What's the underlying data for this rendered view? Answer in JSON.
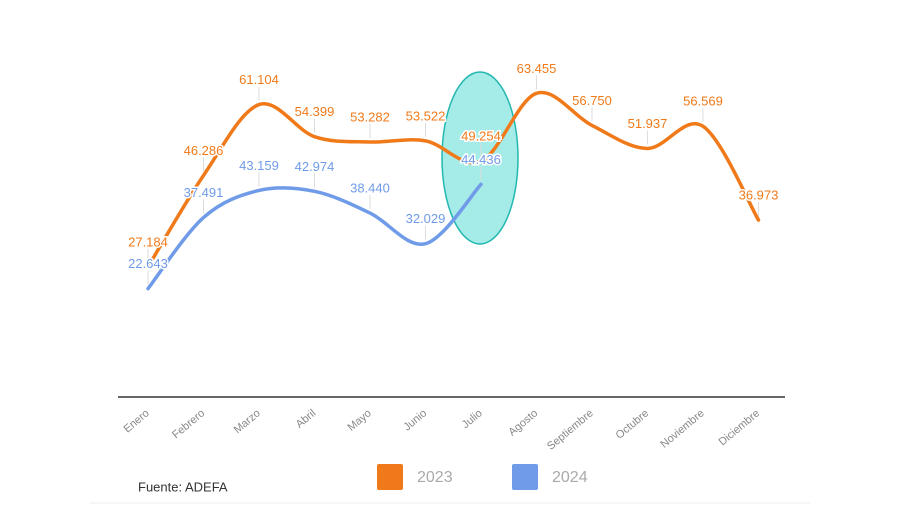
{
  "chart_data": {
    "type": "line",
    "categories": [
      "Enero",
      "Febrero",
      "Marzo",
      "Abril",
      "Mayo",
      "Junio",
      "Julio",
      "Agosto",
      "Septiembre",
      "Octubre",
      "Noviembre",
      "Diciembre"
    ],
    "series": [
      {
        "name": "2023",
        "color": "#f07a1a",
        "values": [
          27184,
          46286,
          61104,
          54399,
          53282,
          53522,
          49254,
          63455,
          56750,
          51937,
          56569,
          36973
        ],
        "value_labels": [
          "27.184",
          "46.286",
          "61.104",
          "54.399",
          "53.282",
          "53.522",
          "49.254",
          "63.455",
          "56.750",
          "51.937",
          "56.569",
          "36.973"
        ]
      },
      {
        "name": "2024",
        "color": "#6f9be8",
        "values": [
          22643,
          37491,
          43159,
          42974,
          38440,
          32029,
          44436,
          null,
          null,
          null,
          null,
          null
        ],
        "value_labels": [
          "22.643",
          "37.491",
          "43.159",
          "42.974",
          "38.440",
          "32.029",
          "44.436",
          null,
          null,
          null,
          null,
          null
        ]
      }
    ],
    "ylim": [
      0,
      70000
    ],
    "source": "Fuente: ADEFA"
  }
}
